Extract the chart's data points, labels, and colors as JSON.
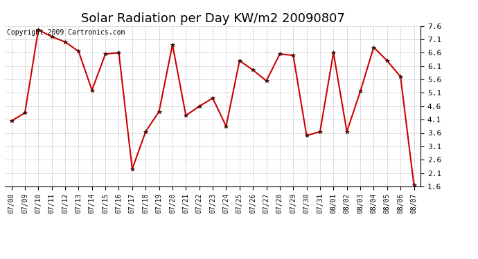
{
  "title": "Solar Radiation per Day KW/m2 20090807",
  "copyright_text": "Copyright 2009 Cartronics.com",
  "dates": [
    "07/08",
    "07/09",
    "07/10",
    "07/11",
    "07/12",
    "07/13",
    "07/14",
    "07/15",
    "07/16",
    "07/17",
    "07/18",
    "07/19",
    "07/20",
    "07/21",
    "07/22",
    "07/23",
    "07/24",
    "07/25",
    "07/26",
    "07/27",
    "07/28",
    "07/29",
    "07/30",
    "07/31",
    "08/01",
    "08/02",
    "08/03",
    "08/04",
    "08/05",
    "08/06",
    "08/07"
  ],
  "values": [
    4.05,
    4.35,
    7.45,
    7.2,
    7.0,
    6.65,
    5.2,
    6.55,
    6.6,
    2.25,
    3.65,
    4.4,
    6.9,
    4.25,
    4.6,
    4.9,
    3.85,
    6.3,
    5.95,
    5.55,
    6.55,
    6.5,
    3.5,
    3.65,
    6.6,
    3.65,
    5.15,
    6.8,
    6.3,
    5.7,
    1.65
  ],
  "line_color": "#cc0000",
  "marker": "*",
  "marker_color": "#000000",
  "marker_size": 4,
  "line_width": 1.5,
  "ylim": [
    1.6,
    7.6
  ],
  "yticks": [
    1.6,
    2.1,
    2.6,
    3.1,
    3.6,
    4.1,
    4.6,
    5.1,
    5.6,
    6.1,
    6.6,
    7.1,
    7.6
  ],
  "grid_color": "#bbbbbb",
  "grid_linestyle": "--",
  "bg_color": "#ffffff",
  "title_fontsize": 13,
  "copyright_fontsize": 7,
  "tick_fontsize": 7,
  "ytick_fontsize": 8
}
